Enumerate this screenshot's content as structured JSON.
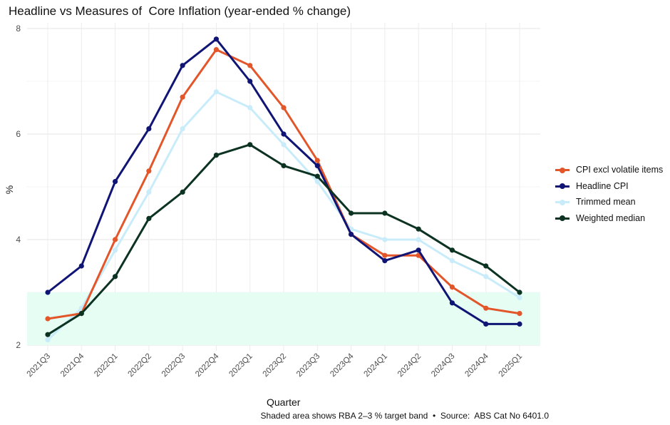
{
  "title": "Headline vs Measures of  Core Inflation (year-ended % change)",
  "caption": "Shaded area shows RBA 2–3 % target band  •  Source:  ABS Cat No 6401.0",
  "chart_data": {
    "type": "line",
    "title": "Headline vs Measures of  Core Inflation (year-ended % change)",
    "xlabel": "Quarter",
    "ylabel": "%",
    "categories": [
      "2021Q3",
      "2021Q4",
      "2022Q1",
      "2022Q2",
      "2022Q3",
      "2022Q4",
      "2023Q1",
      "2023Q2",
      "2023Q3",
      "2023Q4",
      "2024Q1",
      "2024Q2",
      "2024Q3",
      "2024Q4",
      "2025Q1"
    ],
    "ylim": [
      2,
      8
    ],
    "yticks": [
      2,
      4,
      6,
      8
    ],
    "grid": true,
    "legend_position": "right",
    "target_band": {
      "low": 2,
      "high": 3,
      "color": "#e6fdf4"
    },
    "series": [
      {
        "name": "Trimmed mean",
        "color": "#c8ecfa",
        "values": [
          2.1,
          2.7,
          3.8,
          4.9,
          6.1,
          6.8,
          6.5,
          5.8,
          5.1,
          4.2,
          4.0,
          4.0,
          3.6,
          3.3,
          2.9
        ]
      },
      {
        "name": "CPI excl volatile items",
        "color": "#e2562a",
        "values": [
          2.5,
          2.6,
          4.0,
          5.3,
          6.7,
          7.6,
          7.3,
          6.5,
          5.5,
          4.1,
          3.7,
          3.7,
          3.1,
          2.7,
          2.6
        ]
      },
      {
        "name": "Headline CPI",
        "color": "#101575",
        "values": [
          3.0,
          3.5,
          5.1,
          6.1,
          7.3,
          7.8,
          7.0,
          6.0,
          5.4,
          4.1,
          3.6,
          3.8,
          2.8,
          2.4,
          2.4
        ]
      },
      {
        "name": "Weighted median",
        "color": "#0c3322",
        "values": [
          2.2,
          2.6,
          3.3,
          4.4,
          4.9,
          5.6,
          5.8,
          5.4,
          5.2,
          4.5,
          4.5,
          4.2,
          3.8,
          3.5,
          3.0
        ]
      }
    ],
    "legend": [
      "CPI excl volatile items",
      "Headline CPI",
      "Trimmed mean",
      "Weighted median"
    ]
  }
}
